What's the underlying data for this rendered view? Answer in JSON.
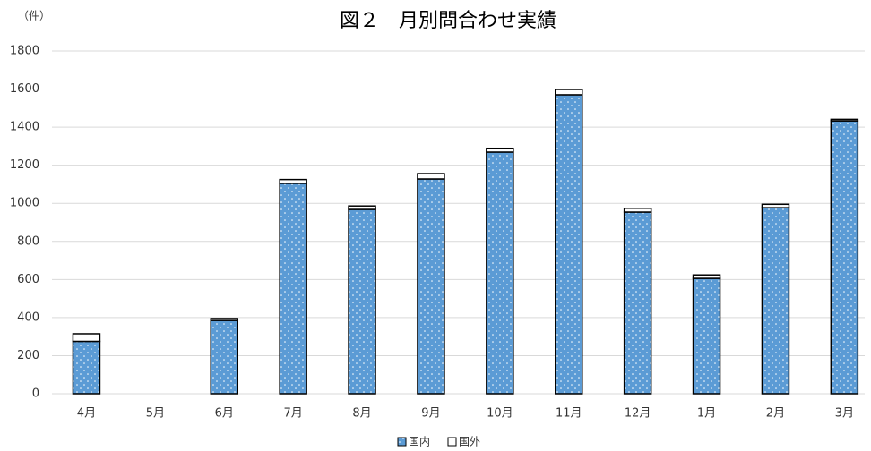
{
  "chart_data": {
    "type": "stacked_bar",
    "title": "図２　月別問合わせ実績",
    "y_axis_label": "（件）",
    "categories": [
      "4月",
      "5月",
      "6月",
      "7月",
      "8月",
      "9月",
      "10月",
      "11月",
      "12月",
      "1月",
      "2月",
      "3月"
    ],
    "series": [
      {
        "name": "国内",
        "color": "#5b9bd5",
        "values": [
          275,
          0,
          385,
          1105,
          968,
          1128,
          1269,
          1570,
          954,
          606,
          977,
          1433
        ]
      },
      {
        "name": "国外",
        "color": "#ffffff",
        "values": [
          40,
          0,
          10,
          20,
          18,
          28,
          20,
          28,
          20,
          18,
          18,
          8
        ]
      }
    ],
    "ylim": [
      0,
      1800
    ],
    "yticks": [
      0,
      200,
      400,
      600,
      800,
      1000,
      1200,
      1400,
      1600,
      1800
    ],
    "grid": true,
    "legend": "bottom"
  }
}
